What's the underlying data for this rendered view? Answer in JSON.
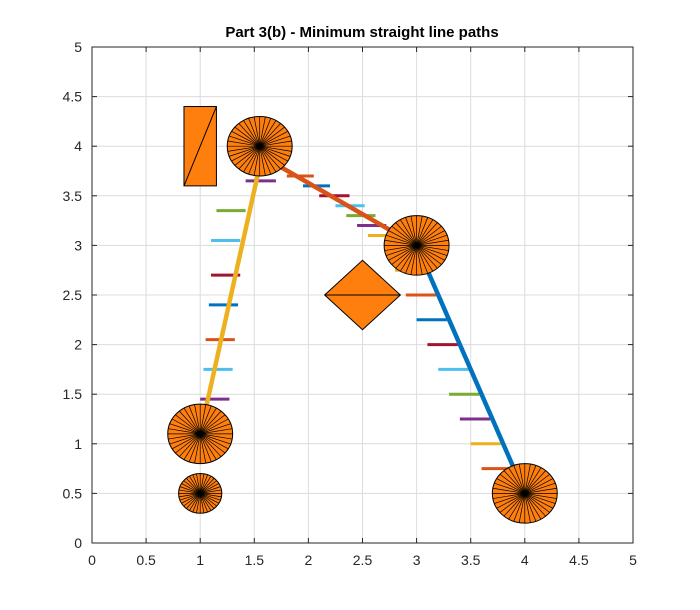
{
  "chart_data": {
    "type": "line",
    "title": "Part 3(b) - Minimum straight line paths",
    "xlabel": "",
    "ylabel": "",
    "xlim": [
      0,
      5
    ],
    "ylim": [
      0,
      5
    ],
    "xticks": [
      "0",
      "0.5",
      "1",
      "1.5",
      "2",
      "2.5",
      "3",
      "3.5",
      "4",
      "4.5",
      "5"
    ],
    "yticks": [
      "0",
      "0.5",
      "1",
      "1.5",
      "2",
      "2.5",
      "3",
      "3.5",
      "4",
      "4.5",
      "5"
    ],
    "grid": true,
    "obstacle_fill": "#ff7f0e",
    "paths": [
      {
        "color": "#0072bd",
        "points": [
          [
            4,
            0.5
          ],
          [
            3,
            3
          ]
        ]
      },
      {
        "color": "#d95319",
        "points": [
          [
            3,
            3
          ],
          [
            1.57,
            3.9
          ]
        ]
      },
      {
        "color": "#edb120",
        "points": [
          [
            1.57,
            3.9
          ],
          [
            1.0,
            1.1
          ]
        ]
      }
    ],
    "dashes": [
      {
        "color": "#d95319",
        "x": [
          3.6,
          3.85
        ],
        "y": 0.75
      },
      {
        "color": "#edb120",
        "x": [
          3.5,
          3.78
        ],
        "y": 1.0
      },
      {
        "color": "#7e2f8e",
        "x": [
          3.4,
          3.68
        ],
        "y": 1.25
      },
      {
        "color": "#77ac30",
        "x": [
          3.3,
          3.58
        ],
        "y": 1.5
      },
      {
        "color": "#4dbeee",
        "x": [
          3.2,
          3.48
        ],
        "y": 1.75
      },
      {
        "color": "#a2142f",
        "x": [
          3.1,
          3.38
        ],
        "y": 2.0
      },
      {
        "color": "#0072bd",
        "x": [
          3.0,
          3.28
        ],
        "y": 2.25
      },
      {
        "color": "#d95319",
        "x": [
          2.9,
          3.18
        ],
        "y": 2.5
      },
      {
        "color": "#edb120",
        "x": [
          2.8,
          3.08
        ],
        "y": 2.75
      },
      {
        "color": "#edb120",
        "x": [
          2.55,
          2.85
        ],
        "y": 3.1
      },
      {
        "color": "#7e2f8e",
        "x": [
          2.45,
          2.72
        ],
        "y": 3.2
      },
      {
        "color": "#77ac30",
        "x": [
          2.35,
          2.62
        ],
        "y": 3.3
      },
      {
        "color": "#4dbeee",
        "x": [
          2.25,
          2.52
        ],
        "y": 3.4
      },
      {
        "color": "#a2142f",
        "x": [
          2.1,
          2.38
        ],
        "y": 3.5
      },
      {
        "color": "#0072bd",
        "x": [
          1.95,
          2.2
        ],
        "y": 3.6
      },
      {
        "color": "#d95319",
        "x": [
          1.8,
          2.05
        ],
        "y": 3.7
      },
      {
        "color": "#7e2f8e",
        "x": [
          1.42,
          1.7
        ],
        "y": 3.65
      },
      {
        "color": "#77ac30",
        "x": [
          1.15,
          1.42
        ],
        "y": 3.35
      },
      {
        "color": "#4dbeee",
        "x": [
          1.1,
          1.37
        ],
        "y": 3.05
      },
      {
        "color": "#a2142f",
        "x": [
          1.1,
          1.37
        ],
        "y": 2.7
      },
      {
        "color": "#0072bd",
        "x": [
          1.08,
          1.35
        ],
        "y": 2.4
      },
      {
        "color": "#d95319",
        "x": [
          1.05,
          1.32
        ],
        "y": 2.05
      },
      {
        "color": "#4dbeee",
        "x": [
          1.03,
          1.3
        ],
        "y": 1.75
      },
      {
        "color": "#7e2f8e",
        "x": [
          1.0,
          1.27
        ],
        "y": 1.45
      }
    ],
    "circles": [
      {
        "cx": 1.55,
        "cy": 4.0,
        "rx": 0.3,
        "ry": 0.3
      },
      {
        "cx": 3.0,
        "cy": 3.0,
        "rx": 0.3,
        "ry": 0.3
      },
      {
        "cx": 4.0,
        "cy": 0.5,
        "rx": 0.3,
        "ry": 0.3
      },
      {
        "cx": 1.0,
        "cy": 1.1,
        "rx": 0.3,
        "ry": 0.3
      },
      {
        "cx": 1.0,
        "cy": 0.5,
        "rx": 0.2,
        "ry": 0.2
      }
    ],
    "rectangle": {
      "x": [
        0.85,
        1.15
      ],
      "y": [
        3.6,
        4.4
      ]
    },
    "diamond": {
      "cx": 2.5,
      "cy": 2.5,
      "dx": 0.35,
      "dy": 0.35
    }
  }
}
